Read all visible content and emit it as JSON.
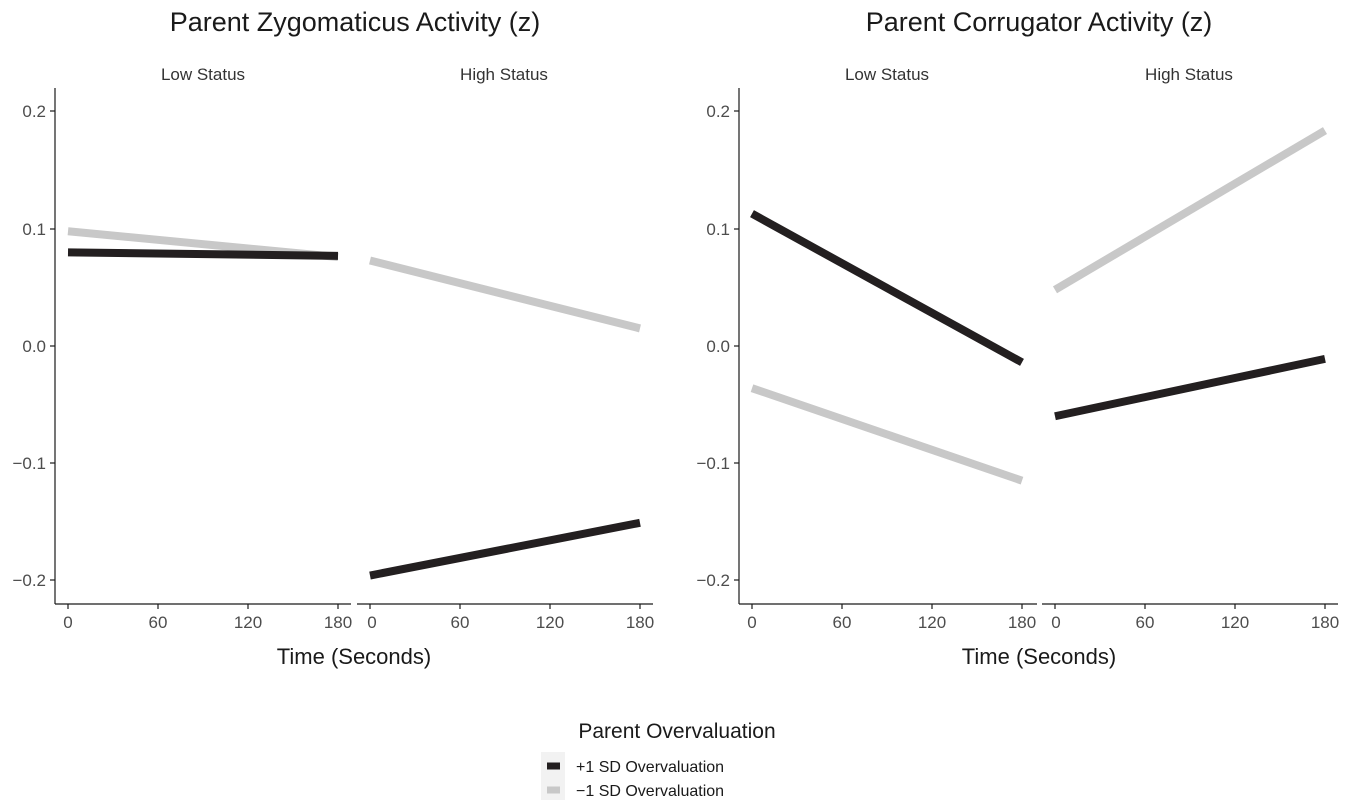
{
  "chart_data": [
    {
      "type": "line",
      "title": "Parent Zygomaticus Activity (z)",
      "xlabel": "Time (Seconds)",
      "ylabel": "",
      "xlim": [
        0,
        180
      ],
      "ylim": [
        -0.22,
        0.21
      ],
      "x_ticks": [
        "0",
        "60",
        "120",
        "180"
      ],
      "y_ticks": [
        "0.2",
        "0.1",
        "0.0",
        "−0.1",
        "−0.2"
      ],
      "grid": false,
      "facets": [
        {
          "label": "Low Status",
          "series": [
            {
              "name": "+1 SD Overvaluation",
              "x": [
                0,
                180
              ],
              "values": [
                0.08,
                0.077
              ]
            },
            {
              "name": "−1 SD Overvaluation",
              "x": [
                0,
                180
              ],
              "values": [
                0.098,
                0.076
              ]
            }
          ]
        },
        {
          "label": "High Status",
          "series": [
            {
              "name": "+1 SD Overvaluation",
              "x": [
                0,
                180
              ],
              "values": [
                -0.196,
                -0.151
              ]
            },
            {
              "name": "−1 SD Overvaluation",
              "x": [
                0,
                180
              ],
              "values": [
                0.073,
                0.015
              ]
            }
          ]
        }
      ]
    },
    {
      "type": "line",
      "title": "Parent Corrugator Activity (z)",
      "xlabel": "Time (Seconds)",
      "ylabel": "",
      "xlim": [
        0,
        180
      ],
      "ylim": [
        -0.22,
        0.21
      ],
      "x_ticks": [
        "0",
        "60",
        "120",
        "180"
      ],
      "y_ticks": [
        "0.2",
        "0.1",
        "0.0",
        "−0.1",
        "−0.2"
      ],
      "grid": false,
      "facets": [
        {
          "label": "Low Status",
          "series": [
            {
              "name": "+1 SD Overvaluation",
              "x": [
                0,
                180
              ],
              "values": [
                0.113,
                -0.014
              ]
            },
            {
              "name": "−1 SD Overvaluation",
              "x": [
                0,
                180
              ],
              "values": [
                -0.036,
                -0.115
              ]
            }
          ]
        },
        {
          "label": "High Status",
          "series": [
            {
              "name": "+1 SD Overvaluation",
              "x": [
                0,
                180
              ],
              "values": [
                -0.06,
                -0.011
              ]
            },
            {
              "name": "−1 SD Overvaluation",
              "x": [
                0,
                180
              ],
              "values": [
                0.048,
                0.184
              ]
            }
          ]
        }
      ]
    }
  ],
  "legend": {
    "title": "Parent Overvaluation",
    "placement": "bottom-center",
    "items": [
      {
        "label": "+1 SD Overvaluation",
        "color": "#231f20"
      },
      {
        "label": "−1 SD Overvaluation",
        "color": "#c8c8c8"
      }
    ]
  },
  "colors": {
    "+1 SD Overvaluation": "#231f20",
    "−1 SD Overvaluation": "#c8c8c8"
  }
}
